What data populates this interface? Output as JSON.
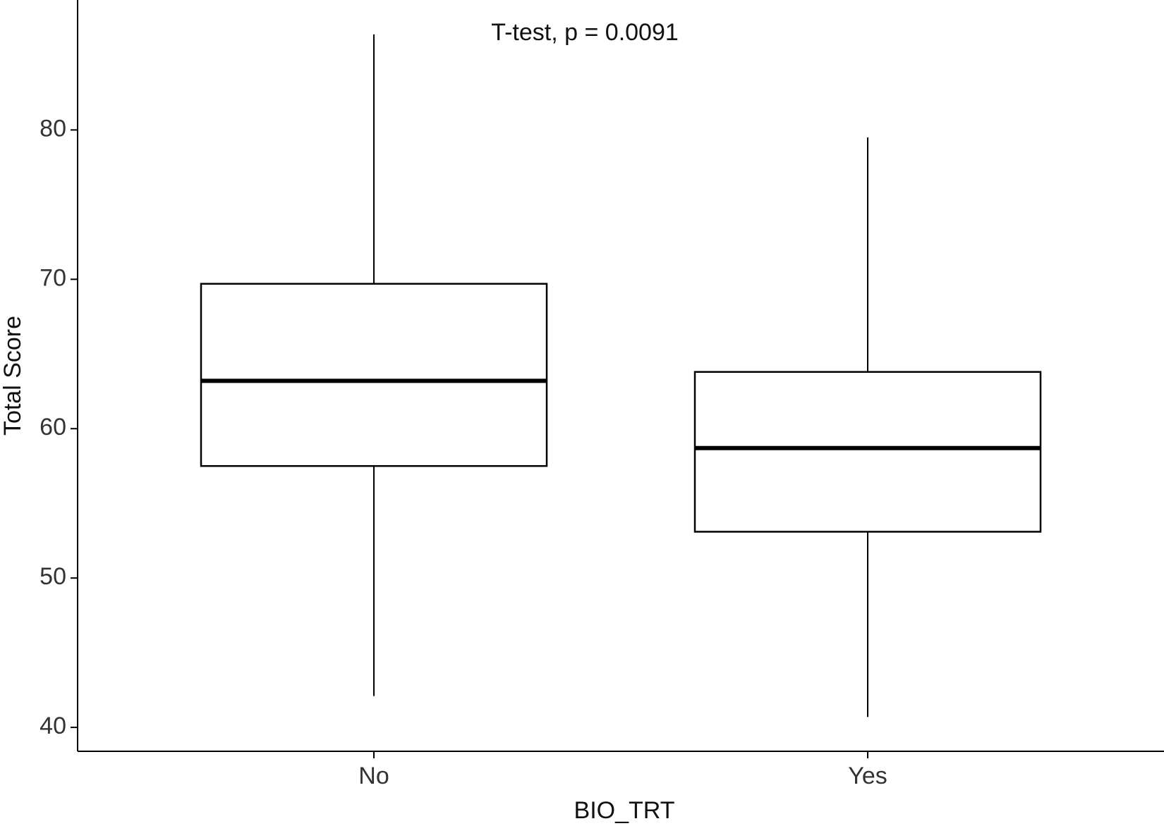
{
  "chart_data": {
    "type": "box",
    "annotation": "T-test, p = 0.0091",
    "x_label": "BIO_TRT",
    "y_label": "Total Score",
    "categories": [
      "No",
      "Yes"
    ],
    "min": [
      42.1,
      40.7
    ],
    "q1": [
      57.5,
      53.1
    ],
    "median": [
      63.2,
      58.7
    ],
    "q3": [
      69.7,
      63.8
    ],
    "max": [
      86.4,
      79.5
    ],
    "color": "#000000",
    "fill": "#ffffff",
    "ylim": [
      38.4,
      88.7
    ],
    "yticks": [
      40,
      50,
      60,
      70,
      80
    ],
    "grid": false
  }
}
